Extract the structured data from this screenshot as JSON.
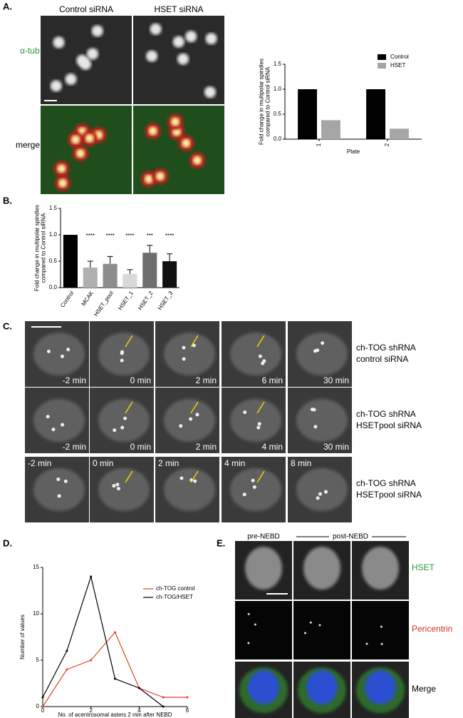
{
  "panels": {
    "A": {
      "label": "A.",
      "columns": [
        "Control siRNA",
        "HSET siRNA"
      ],
      "rows": [
        "α-tub",
        "merge"
      ]
    },
    "B": {
      "label": "B."
    },
    "C": {
      "label": "C.",
      "rows": [
        {
          "lines": [
            "ch-TOG shRNA",
            "control siRNA"
          ],
          "times": [
            "-2 min",
            "0 min",
            "2 min",
            "6 min",
            "30 min"
          ]
        },
        {
          "lines": [
            "ch-TOG shRNA",
            "HSETpool siRNA"
          ],
          "times": [
            "-2 min",
            "0 min",
            "2 min",
            "4 min",
            "30 min"
          ]
        },
        {
          "lines": [
            "ch-TOG shRNA",
            "HSETpool siRNA"
          ],
          "times": [
            "-2 min",
            "0 min",
            "2 min",
            "4 min",
            "8 min"
          ]
        }
      ]
    },
    "D": {
      "label": "D."
    },
    "E": {
      "label": "E.",
      "columns": [
        "pre-NEBD",
        "post-NEBD"
      ],
      "rows": [
        "HSET",
        "Pericentrin",
        "Merge"
      ]
    }
  },
  "chart_data": [
    {
      "type": "bar",
      "y_label": [
        "Fold change in multipolar spindles",
        "compared to Control siRNA"
      ],
      "x_label": "Plate",
      "categories": [
        "1",
        "2"
      ],
      "series": [
        {
          "name": "Control",
          "color": "#000000",
          "values": [
            1,
            1
          ]
        },
        {
          "name": "HSET",
          "color": "#a6a6a6",
          "values": [
            0.38,
            0.21
          ]
        }
      ],
      "ylim": [
        0,
        1.5
      ],
      "yticks": [
        {
          "value": 0,
          "label": "0.0"
        },
        {
          "value": 0.5,
          "label": "0.5"
        },
        {
          "value": 1,
          "label": "1.0"
        },
        {
          "value": 1.5,
          "label": "1.5"
        }
      ],
      "legend": "upper right"
    },
    {
      "type": "bar",
      "y_label": [
        "Fold change in multipolar spindles",
        "compared to Control siRNA"
      ],
      "categories": [
        "Control",
        "MCAK",
        "HSET_pool",
        "HSET_1",
        "HSET_2",
        "HSET_3"
      ],
      "values": [
        1,
        0.38,
        0.45,
        0.26,
        0.66,
        0.5
      ],
      "errors": [
        0,
        0.12,
        0.14,
        0.08,
        0.14,
        0.14
      ],
      "colors": [
        "#000000",
        "#b0b0b0",
        "#8c8c8c",
        "#d9d9d9",
        "#6e6e6e",
        "#111111"
      ],
      "significance": [
        null,
        "****",
        "****",
        "****",
        "***",
        "****"
      ],
      "ylim": [
        0,
        1.5
      ],
      "yticks": [
        {
          "value": 0,
          "label": "0.0"
        },
        {
          "value": 0.5,
          "label": "0.5"
        },
        {
          "value": 1,
          "label": "1.0"
        },
        {
          "value": 1.5,
          "label": "1.5"
        }
      ]
    },
    {
      "type": "line",
      "x_label": "No. of acentrosomal asters 2 min after NEBD",
      "y_label": [
        "Number of values"
      ],
      "x": [
        0,
        1,
        2,
        3,
        4,
        5,
        6
      ],
      "series": [
        {
          "name": "ch-TOG control",
          "color": "#e8412c",
          "values": [
            0,
            4,
            5,
            8,
            2,
            1,
            1
          ]
        },
        {
          "name": "ch-TOG/HSET",
          "color": "#000000",
          "values": [
            1,
            6,
            14,
            3,
            2,
            0,
            null
          ]
        }
      ],
      "xlim": [
        0,
        6
      ],
      "xticks": [
        0,
        2,
        4,
        6
      ],
      "ylim": [
        0,
        15
      ],
      "yticks": [
        0,
        5,
        10,
        15
      ],
      "legend": "upper right"
    }
  ]
}
